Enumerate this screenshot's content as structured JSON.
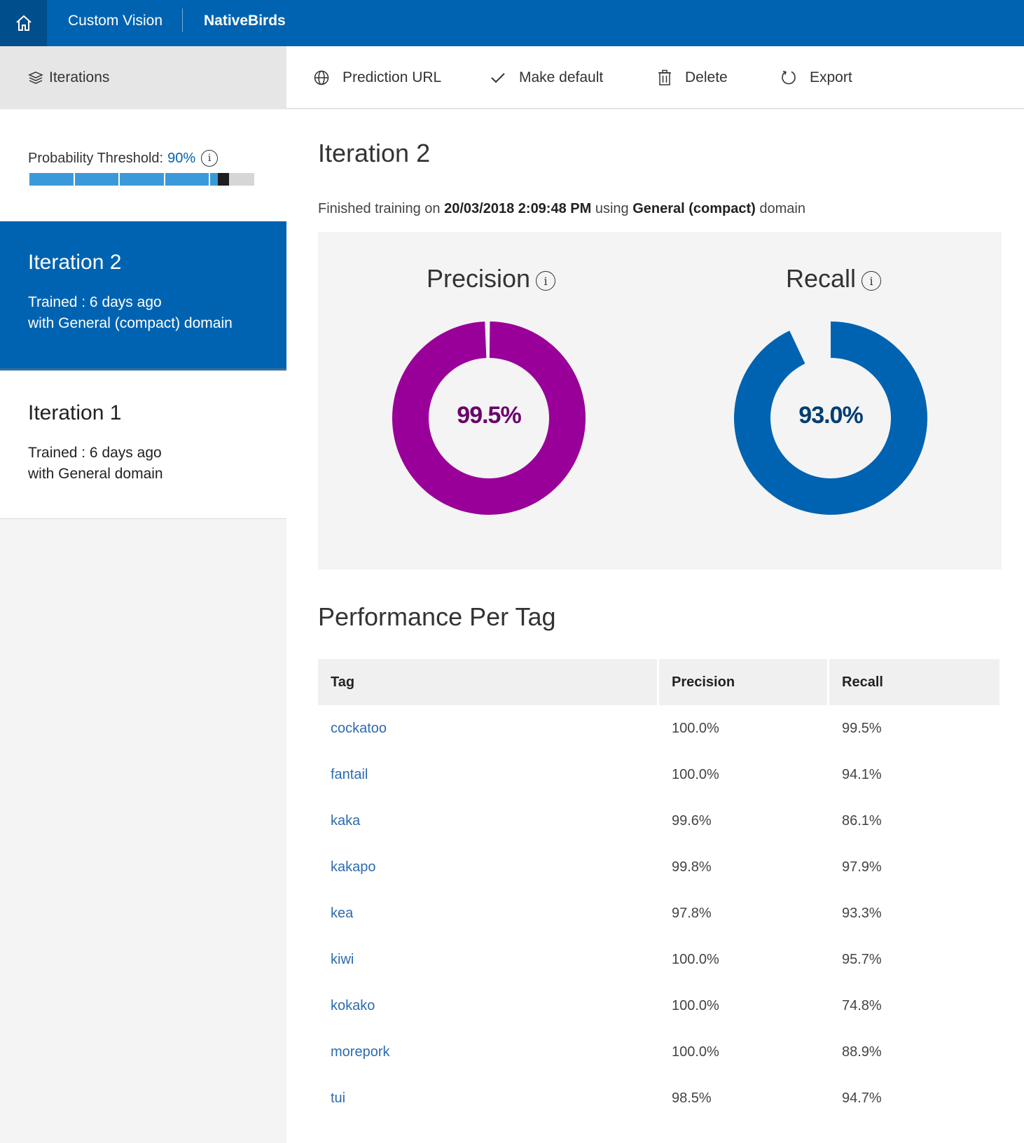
{
  "header": {
    "brand": "Custom Vision",
    "project": "NativeBirds"
  },
  "sidebar": {
    "title": "Iterations",
    "threshold_label": "Probability Threshold:",
    "threshold_value": "90%",
    "threshold_fraction": 0.9,
    "iterations": [
      {
        "title": "Iteration 2",
        "trained": "Trained : 6 days ago",
        "domain": "with General (compact) domain",
        "selected": true
      },
      {
        "title": "Iteration 1",
        "trained": "Trained : 6 days ago",
        "domain": "with General domain",
        "selected": false
      }
    ]
  },
  "toolbar": {
    "prediction_url": "Prediction URL",
    "make_default": "Make default",
    "delete": "Delete",
    "export": "Export"
  },
  "main": {
    "title": "Iteration 2",
    "trained_prefix": "Finished training on",
    "trained_date": "20/03/2018 2:09:48 PM",
    "trained_using": "using",
    "trained_domain": "General (compact)",
    "trained_suffix": "domain",
    "precision_title": "Precision",
    "recall_title": "Recall",
    "precision_value": "99.5%",
    "recall_value": "93.0%",
    "precision_fraction": 0.995,
    "recall_fraction": 0.93,
    "precision_color": "#990099",
    "precision_text_color": "#6a006a",
    "recall_color": "#0063b1",
    "recall_text_color": "#003d73",
    "performance_title": "Performance Per Tag"
  },
  "table": {
    "headers": [
      "Tag",
      "Precision",
      "Recall"
    ],
    "rows": [
      {
        "tag": "cockatoo",
        "precision": "100.0%",
        "recall": "99.5%"
      },
      {
        "tag": "fantail",
        "precision": "100.0%",
        "recall": "94.1%"
      },
      {
        "tag": "kaka",
        "precision": "99.6%",
        "recall": "86.1%"
      },
      {
        "tag": "kakapo",
        "precision": "99.8%",
        "recall": "97.9%"
      },
      {
        "tag": "kea",
        "precision": "97.8%",
        "recall": "93.3%"
      },
      {
        "tag": "kiwi",
        "precision": "100.0%",
        "recall": "95.7%"
      },
      {
        "tag": "kokako",
        "precision": "100.0%",
        "recall": "74.8%"
      },
      {
        "tag": "morepork",
        "precision": "100.0%",
        "recall": "88.9%"
      },
      {
        "tag": "tui",
        "precision": "98.5%",
        "recall": "94.7%"
      }
    ]
  },
  "icons": {
    "home": "home-icon",
    "layers": "layers-icon",
    "globe": "globe-icon",
    "check": "check-icon",
    "trash": "trash-icon",
    "refresh": "refresh-icon",
    "info": "info-icon"
  }
}
